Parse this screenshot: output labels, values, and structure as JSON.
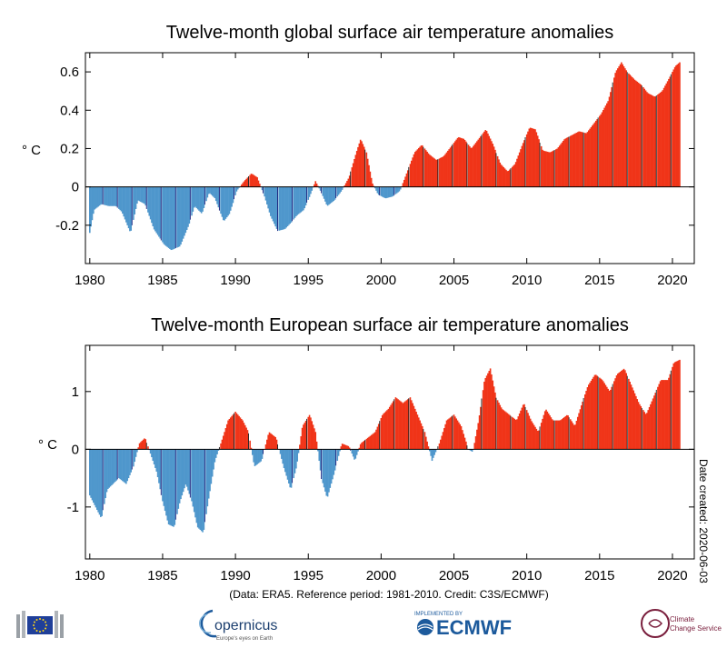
{
  "colors": {
    "positive": "#f03418",
    "negative": "#4f97cc",
    "tick_dark": "#1a237e",
    "axis": "#000000"
  },
  "charts": [
    {
      "id": "global",
      "type": "bar",
      "title": "Twelve-month global surface air temperature anomalies",
      "ylabel": "° C",
      "ylim": [
        -0.4,
        0.7
      ],
      "yticks": [
        {
          "v": -0.2,
          "label": "-0.2"
        },
        {
          "v": 0,
          "label": "0"
        },
        {
          "v": 0.2,
          "label": "0.2"
        },
        {
          "v": 0.4,
          "label": "0.4"
        },
        {
          "v": 0.6,
          "label": "0.6"
        }
      ],
      "xlim": [
        1979.7,
        2021.5
      ],
      "xticks": [
        {
          "v": 1980,
          "label": "1980"
        },
        {
          "v": 1985,
          "label": "1985"
        },
        {
          "v": 1990,
          "label": "1990"
        },
        {
          "v": 1995,
          "label": "1995"
        },
        {
          "v": 2000,
          "label": "2000"
        },
        {
          "v": 2005,
          "label": "2005"
        },
        {
          "v": 2010,
          "label": "2010"
        },
        {
          "v": 2015,
          "label": "2015"
        },
        {
          "v": 2020,
          "label": "2020"
        }
      ],
      "keypoints": [
        [
          1980.0,
          -0.24
        ],
        [
          1980.3,
          -0.12
        ],
        [
          1980.8,
          -0.09
        ],
        [
          1981.3,
          -0.1
        ],
        [
          1981.8,
          -0.1
        ],
        [
          1982.2,
          -0.13
        ],
        [
          1982.8,
          -0.24
        ],
        [
          1983.3,
          -0.07
        ],
        [
          1983.8,
          -0.09
        ],
        [
          1984.4,
          -0.22
        ],
        [
          1985.1,
          -0.3
        ],
        [
          1985.6,
          -0.33
        ],
        [
          1986.2,
          -0.31
        ],
        [
          1986.8,
          -0.2
        ],
        [
          1987.2,
          -0.1
        ],
        [
          1987.7,
          -0.14
        ],
        [
          1988.2,
          -0.03
        ],
        [
          1988.6,
          -0.06
        ],
        [
          1989.2,
          -0.18
        ],
        [
          1989.6,
          -0.14
        ],
        [
          1990.1,
          -0.02
        ],
        [
          1990.6,
          0.03
        ],
        [
          1991.1,
          0.07
        ],
        [
          1991.5,
          0.05
        ],
        [
          1992.0,
          -0.05
        ],
        [
          1992.4,
          -0.15
        ],
        [
          1992.9,
          -0.23
        ],
        [
          1993.4,
          -0.22
        ],
        [
          1993.9,
          -0.18
        ],
        [
          1994.2,
          -0.15
        ],
        [
          1994.7,
          -0.12
        ],
        [
          1995.1,
          -0.05
        ],
        [
          1995.5,
          0.03
        ],
        [
          1995.9,
          -0.03
        ],
        [
          1996.3,
          -0.1
        ],
        [
          1996.8,
          -0.07
        ],
        [
          1997.3,
          -0.02
        ],
        [
          1997.8,
          0.05
        ],
        [
          1998.3,
          0.18
        ],
        [
          1998.6,
          0.25
        ],
        [
          1999.0,
          0.18
        ],
        [
          1999.4,
          0.02
        ],
        [
          1999.8,
          -0.04
        ],
        [
          2000.3,
          -0.06
        ],
        [
          2000.8,
          -0.05
        ],
        [
          2001.3,
          -0.02
        ],
        [
          2001.8,
          0.08
        ],
        [
          2002.3,
          0.18
        ],
        [
          2002.8,
          0.22
        ],
        [
          2003.3,
          0.17
        ],
        [
          2003.8,
          0.14
        ],
        [
          2004.3,
          0.16
        ],
        [
          2004.8,
          0.21
        ],
        [
          2005.3,
          0.26
        ],
        [
          2005.7,
          0.25
        ],
        [
          2006.2,
          0.2
        ],
        [
          2006.7,
          0.25
        ],
        [
          2007.2,
          0.3
        ],
        [
          2007.7,
          0.22
        ],
        [
          2008.2,
          0.12
        ],
        [
          2008.7,
          0.08
        ],
        [
          2009.2,
          0.12
        ],
        [
          2009.7,
          0.22
        ],
        [
          2010.2,
          0.31
        ],
        [
          2010.6,
          0.3
        ],
        [
          2011.1,
          0.19
        ],
        [
          2011.6,
          0.18
        ],
        [
          2012.1,
          0.2
        ],
        [
          2012.6,
          0.25
        ],
        [
          2013.1,
          0.27
        ],
        [
          2013.6,
          0.29
        ],
        [
          2014.1,
          0.28
        ],
        [
          2014.6,
          0.33
        ],
        [
          2015.1,
          0.38
        ],
        [
          2015.6,
          0.45
        ],
        [
          2016.1,
          0.6
        ],
        [
          2016.5,
          0.65
        ],
        [
          2016.9,
          0.6
        ],
        [
          2017.4,
          0.56
        ],
        [
          2017.9,
          0.53
        ],
        [
          2018.3,
          0.49
        ],
        [
          2018.8,
          0.47
        ],
        [
          2019.3,
          0.5
        ],
        [
          2019.8,
          0.57
        ],
        [
          2020.2,
          0.63
        ],
        [
          2020.5,
          0.65
        ]
      ]
    },
    {
      "id": "europe",
      "type": "bar",
      "title": "Twelve-month European surface air temperature anomalies",
      "ylabel": "° C",
      "ylim": [
        -1.9,
        1.8
      ],
      "yticks": [
        {
          "v": -1,
          "label": "-1"
        },
        {
          "v": 0,
          "label": "0"
        },
        {
          "v": 1,
          "label": "1"
        }
      ],
      "xlim": [
        1979.7,
        2021.5
      ],
      "xticks": [
        {
          "v": 1980,
          "label": "1980"
        },
        {
          "v": 1985,
          "label": "1985"
        },
        {
          "v": 1990,
          "label": "1990"
        },
        {
          "v": 1995,
          "label": "1995"
        },
        {
          "v": 2000,
          "label": "2000"
        },
        {
          "v": 2005,
          "label": "2005"
        },
        {
          "v": 2010,
          "label": "2010"
        },
        {
          "v": 2015,
          "label": "2015"
        },
        {
          "v": 2020,
          "label": "2020"
        }
      ],
      "side_note": "Date created: 2020-06-03",
      "keypoints": [
        [
          1980.0,
          -0.8
        ],
        [
          1980.4,
          -1.0
        ],
        [
          1980.8,
          -1.2
        ],
        [
          1981.2,
          -0.7
        ],
        [
          1981.6,
          -0.6
        ],
        [
          1982.0,
          -0.5
        ],
        [
          1982.5,
          -0.6
        ],
        [
          1983.0,
          -0.3
        ],
        [
          1983.4,
          0.1
        ],
        [
          1983.8,
          0.2
        ],
        [
          1984.2,
          -0.1
        ],
        [
          1984.6,
          -0.4
        ],
        [
          1985.0,
          -0.9
        ],
        [
          1985.4,
          -1.3
        ],
        [
          1985.8,
          -1.35
        ],
        [
          1986.2,
          -0.9
        ],
        [
          1986.6,
          -0.6
        ],
        [
          1987.0,
          -0.9
        ],
        [
          1987.4,
          -1.35
        ],
        [
          1987.8,
          -1.45
        ],
        [
          1988.2,
          -0.8
        ],
        [
          1988.6,
          -0.2
        ],
        [
          1989.0,
          0.1
        ],
        [
          1989.5,
          0.5
        ],
        [
          1990.0,
          0.65
        ],
        [
          1990.5,
          0.5
        ],
        [
          1990.9,
          0.3
        ],
        [
          1991.3,
          -0.3
        ],
        [
          1991.8,
          -0.2
        ],
        [
          1992.3,
          0.3
        ],
        [
          1992.8,
          0.2
        ],
        [
          1993.3,
          -0.3
        ],
        [
          1993.8,
          -0.7
        ],
        [
          1994.2,
          -0.3
        ],
        [
          1994.6,
          0.4
        ],
        [
          1995.1,
          0.6
        ],
        [
          1995.5,
          0.3
        ],
        [
          1995.9,
          -0.5
        ],
        [
          1996.3,
          -0.85
        ],
        [
          1996.8,
          -0.4
        ],
        [
          1997.3,
          0.1
        ],
        [
          1997.8,
          0.05
        ],
        [
          1998.2,
          -0.2
        ],
        [
          1998.6,
          0.1
        ],
        [
          1999.1,
          0.2
        ],
        [
          1999.6,
          0.3
        ],
        [
          2000.1,
          0.6
        ],
        [
          2000.5,
          0.7
        ],
        [
          2001.0,
          0.9
        ],
        [
          2001.5,
          0.8
        ],
        [
          2002.0,
          0.9
        ],
        [
          2002.5,
          0.6
        ],
        [
          2003.0,
          0.3
        ],
        [
          2003.5,
          -0.2
        ],
        [
          2004.0,
          0.1
        ],
        [
          2004.5,
          0.5
        ],
        [
          2005.0,
          0.6
        ],
        [
          2005.5,
          0.4
        ],
        [
          2006.0,
          0.0
        ],
        [
          2006.3,
          -0.05
        ],
        [
          2006.7,
          0.5
        ],
        [
          2007.1,
          1.2
        ],
        [
          2007.5,
          1.4
        ],
        [
          2007.9,
          0.9
        ],
        [
          2008.3,
          0.7
        ],
        [
          2008.8,
          0.6
        ],
        [
          2009.3,
          0.5
        ],
        [
          2009.8,
          0.8
        ],
        [
          2010.3,
          0.5
        ],
        [
          2010.8,
          0.3
        ],
        [
          2011.3,
          0.7
        ],
        [
          2011.8,
          0.5
        ],
        [
          2012.3,
          0.5
        ],
        [
          2012.8,
          0.6
        ],
        [
          2013.3,
          0.4
        ],
        [
          2013.8,
          0.8
        ],
        [
          2014.2,
          1.1
        ],
        [
          2014.7,
          1.3
        ],
        [
          2015.2,
          1.2
        ],
        [
          2015.7,
          1.0
        ],
        [
          2016.2,
          1.3
        ],
        [
          2016.7,
          1.4
        ],
        [
          2017.2,
          1.1
        ],
        [
          2017.7,
          0.8
        ],
        [
          2018.2,
          0.6
        ],
        [
          2018.7,
          0.9
        ],
        [
          2019.2,
          1.2
        ],
        [
          2019.7,
          1.2
        ],
        [
          2020.1,
          1.5
        ],
        [
          2020.5,
          1.55
        ]
      ]
    }
  ],
  "footer": {
    "credit": "(Data: ERA5.  Reference period: 1981-2010.  Credit: C3S/ECMWF)",
    "logos": {
      "copernicus": "opernicus",
      "copernicus_sub": "Europe's eyes on Earth",
      "ecmwf": "ECMWF",
      "ecmwf_sub": "IMPLEMENTED BY",
      "c3s_line1": "Climate",
      "c3s_line2": "Change Service"
    }
  }
}
